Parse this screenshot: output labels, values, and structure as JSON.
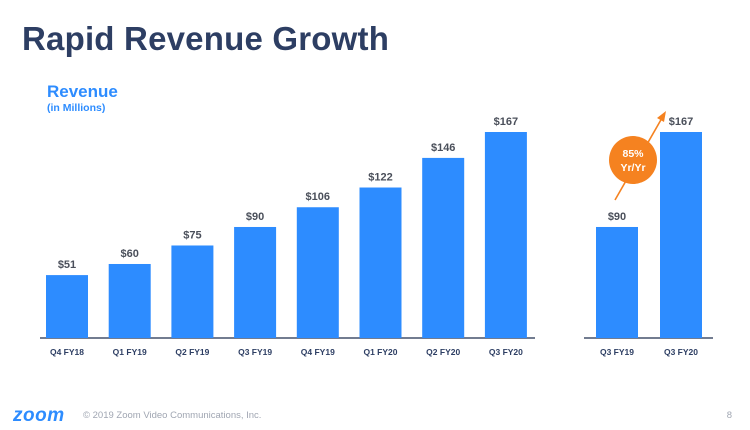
{
  "title": "Rapid Revenue Growth",
  "revenue_label": "Revenue",
  "revenue_sublabel": "(in Millions)",
  "colors": {
    "bar": "#2d8cff",
    "title": "#2d3e63",
    "badge": "#f58220",
    "axis": "#1f2d4d",
    "footer": "#a0a6b2"
  },
  "chart_data": [
    {
      "type": "bar",
      "categories": [
        "Q4 FY18",
        "Q1 FY19",
        "Q2 FY19",
        "Q3 FY19",
        "Q4 FY19",
        "Q1 FY20",
        "Q2 FY20",
        "Q3 FY20"
      ],
      "values": [
        51,
        60,
        75,
        90,
        106,
        122,
        146,
        167
      ],
      "labels": [
        "$51",
        "$60",
        "$75",
        "$90",
        "$106",
        "$122",
        "$146",
        "$167"
      ],
      "title": "Revenue",
      "subtitle": "(in Millions)",
      "ylim": [
        0,
        180
      ]
    },
    {
      "type": "bar",
      "categories": [
        "Q3 FY19",
        "Q3 FY20"
      ],
      "values": [
        90,
        167
      ],
      "labels": [
        "$90",
        "$167"
      ],
      "annotation": "85% Yr/Yr",
      "annotation_lines": [
        "85%",
        "Yr/Yr"
      ],
      "ylim": [
        0,
        180
      ]
    }
  ],
  "footer": {
    "logo": "zoom",
    "copyright": "© 2019 Zoom Video Communications, Inc.",
    "page": "8"
  }
}
